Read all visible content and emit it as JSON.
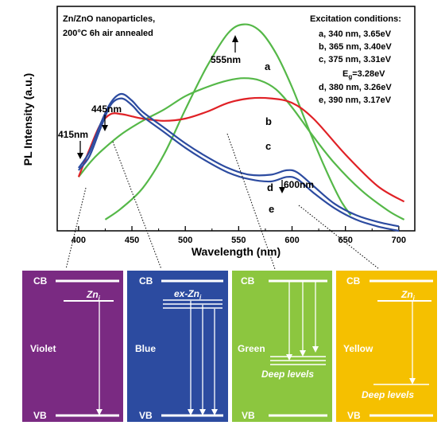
{
  "chart_data": {
    "type": "line",
    "xlabel": "Wavelength (nm)",
    "ylabel": "PL Intensity (a.u.)",
    "xlim": [
      380,
      715
    ],
    "ylim": [
      0,
      100
    ],
    "x_ticks": [
      400,
      450,
      500,
      550,
      600,
      650,
      700
    ],
    "sample_note": [
      "Zn/ZnO nanoparticles,",
      "200°C 6h air annealed"
    ],
    "excitation": {
      "title": "Excitation conditions:",
      "lines": [
        "a, 340 nm, 3.65eV",
        "b, 365 nm, 3.40eV",
        "c, 375 nm, 3.31eV",
        "d, 380 nm, 3.26eV",
        "e, 390 nm, 3.17eV"
      ],
      "eg_prefix": "E",
      "eg_sub": "g",
      "eg_value": "=3.28eV"
    },
    "peaks": {
      "p415": "415nm",
      "p445": "445nm",
      "p555": "555nm",
      "p600": "600nm"
    },
    "series": [
      {
        "name": "a",
        "color": "#55b848",
        "x": [
          425,
          440,
          460,
          480,
          500,
          520,
          540,
          555,
          570,
          585,
          600,
          615,
          630,
          645,
          655
        ],
        "y": [
          5,
          10,
          19,
          34,
          54,
          73,
          88,
          92,
          89,
          79,
          64,
          46,
          29,
          14,
          7
        ]
      },
      {
        "name": "b",
        "color": "#55b848",
        "x": [
          400,
          410,
          420,
          440,
          460,
          480,
          500,
          520,
          540,
          555,
          570,
          585,
          600,
          620,
          640,
          665,
          690,
          705
        ],
        "y": [
          24,
          30,
          35,
          43,
          49,
          54,
          60,
          64,
          67,
          68,
          67,
          63,
          55,
          42,
          30,
          18,
          9,
          5
        ]
      },
      {
        "name": "c",
        "color": "#e02126",
        "x": [
          400,
          410,
          420,
          430,
          440,
          450,
          460,
          480,
          500,
          520,
          540,
          560,
          580,
          600,
          620,
          650,
          680,
          705
        ],
        "y": [
          24,
          36,
          47,
          52,
          52,
          51,
          50,
          49,
          50,
          53,
          57,
          59,
          59,
          57,
          50,
          34,
          20,
          13
        ]
      },
      {
        "name": "d",
        "color": "#2c4ba0",
        "x": [
          400,
          410,
          420,
          430,
          440,
          450,
          460,
          480,
          500,
          520,
          540,
          560,
          580,
          595,
          605,
          620,
          640,
          660,
          680,
          700
        ],
        "y": [
          28,
          35,
          47,
          57,
          61,
          58,
          53,
          46,
          39,
          33,
          28,
          25,
          25,
          27,
          26,
          20,
          12,
          7,
          4,
          2
        ]
      },
      {
        "name": "e",
        "color": "#2c4ba0",
        "x": [
          400,
          410,
          420,
          430,
          440,
          450,
          460,
          480,
          500,
          520,
          540,
          560,
          580,
          595,
          605,
          620,
          640,
          660,
          680,
          700
        ],
        "y": [
          27,
          33,
          45,
          56,
          59,
          56,
          51,
          44,
          37,
          31,
          26,
          23,
          22,
          24,
          23,
          17,
          10,
          5,
          2,
          0
        ]
      }
    ]
  },
  "panels": [
    {
      "label": "Violet",
      "color": "#7a2a82",
      "cb": "CB",
      "vb": "VB",
      "level": "Zn",
      "level_sub": "i"
    },
    {
      "label": "Blue",
      "color": "#2c4ba0",
      "cb": "CB",
      "vb": "VB",
      "level": "ex-Zn",
      "level_sub": "i"
    },
    {
      "label": "Green",
      "color": "#8cc63f",
      "cb": "CB",
      "vb": "VB",
      "level": "Deep levels"
    },
    {
      "label": "Yellow",
      "color": "#f5c000",
      "cb": "CB",
      "vb": "VB",
      "level": "Zn",
      "level_sub": "i",
      "level2": "Deep levels"
    }
  ]
}
